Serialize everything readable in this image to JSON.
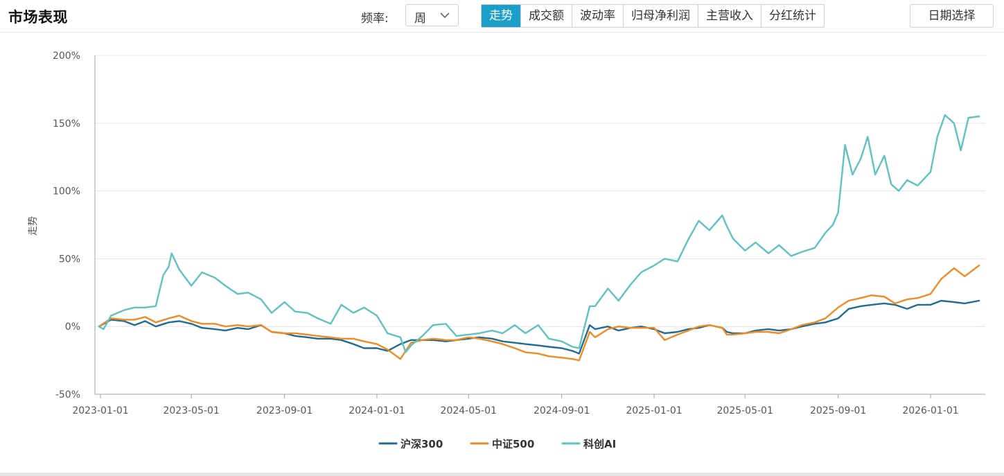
{
  "header": {
    "title": "市场表现",
    "frequency_label": "频率:",
    "frequency_value": "周",
    "tabs": [
      {
        "label": "走势",
        "active": true
      },
      {
        "label": "成交额",
        "active": false
      },
      {
        "label": "波动率",
        "active": false
      },
      {
        "label": "归母净利润",
        "active": false
      },
      {
        "label": "主营收入",
        "active": false
      },
      {
        "label": "分红统计",
        "active": false
      }
    ],
    "date_button": "日期选择"
  },
  "colors": {
    "accent": "#1aa0c8",
    "hs300": "#1f6b94",
    "zz500": "#f08a22",
    "kcai": "#5fc1c1"
  },
  "icons": {
    "frequency_dropdown": "chevron-down-icon"
  },
  "chart_data": {
    "type": "line",
    "title": "",
    "xlabel": "",
    "ylabel": "走势",
    "ylim": [
      -50,
      200
    ],
    "yticks": [
      -50,
      0,
      50,
      100,
      150,
      200
    ],
    "ytick_labels": [
      "-50%",
      "0%",
      "50%",
      "100%",
      "150%",
      "200%"
    ],
    "xticks": [
      "2023-01-01",
      "2023-05-01",
      "2023-09-01",
      "2024-01-01",
      "2024-05-01",
      "2024-09-01",
      "2025-01-01",
      "2025-05-01",
      "2025-09-01",
      "2026-01-01"
    ],
    "xlim": [
      "2022-12-30",
      "2026-03-06"
    ],
    "grid": "horizontal",
    "legend": "bottom-center",
    "series": [
      {
        "name": "沪深300",
        "color": "#1f6b94",
        "x": [
          "2022-12-30",
          "2023-01-15",
          "2023-02-01",
          "2023-02-15",
          "2023-03-01",
          "2023-03-15",
          "2023-04-01",
          "2023-04-15",
          "2023-05-01",
          "2023-05-15",
          "2023-06-01",
          "2023-06-15",
          "2023-07-01",
          "2023-07-15",
          "2023-08-01",
          "2023-08-15",
          "2023-09-01",
          "2023-09-15",
          "2023-10-01",
          "2023-10-15",
          "2023-11-01",
          "2023-11-15",
          "2023-12-01",
          "2023-12-15",
          "2024-01-01",
          "2024-01-15",
          "2024-02-01",
          "2024-02-15",
          "2024-03-01",
          "2024-03-15",
          "2024-04-01",
          "2024-04-15",
          "2024-05-01",
          "2024-05-15",
          "2024-06-01",
          "2024-06-15",
          "2024-07-01",
          "2024-07-15",
          "2024-08-01",
          "2024-08-15",
          "2024-09-01",
          "2024-09-15",
          "2024-09-24",
          "2024-10-08",
          "2024-10-15",
          "2024-11-01",
          "2024-11-15",
          "2024-12-01",
          "2024-12-15",
          "2025-01-01",
          "2025-01-15",
          "2025-02-01",
          "2025-02-15",
          "2025-03-01",
          "2025-03-15",
          "2025-04-01",
          "2025-04-07",
          "2025-04-15",
          "2025-05-01",
          "2025-05-15",
          "2025-06-01",
          "2025-06-15",
          "2025-07-01",
          "2025-07-15",
          "2025-08-01",
          "2025-08-15",
          "2025-09-01",
          "2025-09-15",
          "2025-10-01",
          "2025-10-15",
          "2025-11-01",
          "2025-11-15",
          "2025-12-01",
          "2025-12-15",
          "2026-01-01",
          "2026-01-15",
          "2026-02-01",
          "2026-02-15",
          "2026-03-06"
        ],
        "values": [
          0,
          5,
          4,
          1,
          4,
          0,
          3,
          4,
          2,
          -1,
          -2,
          -3,
          -1,
          -2,
          1,
          -4,
          -5,
          -7,
          -8,
          -9,
          -9,
          -10,
          -13,
          -16,
          -16,
          -18,
          -13,
          -10,
          -10,
          -10,
          -11,
          -10,
          -9,
          -8,
          -9,
          -11,
          -12,
          -13,
          -14,
          -15,
          -16,
          -18,
          -20,
          1,
          -2,
          0,
          -3,
          -1,
          0,
          -2,
          -5,
          -4,
          -2,
          -1,
          1,
          -1,
          -4,
          -5,
          -5,
          -3,
          -2,
          -3,
          -2,
          0,
          2,
          3,
          6,
          13,
          15,
          16,
          17,
          16,
          13,
          16,
          16,
          19,
          18,
          17,
          19
        ]
      },
      {
        "name": "中证500",
        "color": "#f08a22",
        "x": [
          "2022-12-30",
          "2023-01-15",
          "2023-02-01",
          "2023-02-15",
          "2023-03-01",
          "2023-03-15",
          "2023-04-01",
          "2023-04-15",
          "2023-05-01",
          "2023-05-15",
          "2023-06-01",
          "2023-06-15",
          "2023-07-01",
          "2023-07-15",
          "2023-08-01",
          "2023-08-15",
          "2023-09-01",
          "2023-09-15",
          "2023-10-01",
          "2023-10-15",
          "2023-11-01",
          "2023-11-15",
          "2023-12-01",
          "2023-12-15",
          "2024-01-01",
          "2024-01-15",
          "2024-02-01",
          "2024-02-15",
          "2024-03-01",
          "2024-03-15",
          "2024-04-01",
          "2024-04-15",
          "2024-05-01",
          "2024-05-15",
          "2024-06-01",
          "2024-06-15",
          "2024-07-01",
          "2024-07-15",
          "2024-08-01",
          "2024-08-15",
          "2024-09-01",
          "2024-09-15",
          "2024-09-24",
          "2024-10-08",
          "2024-10-15",
          "2024-11-01",
          "2024-11-15",
          "2024-12-01",
          "2024-12-15",
          "2025-01-01",
          "2025-01-15",
          "2025-02-01",
          "2025-02-15",
          "2025-03-01",
          "2025-03-15",
          "2025-04-01",
          "2025-04-07",
          "2025-04-15",
          "2025-05-01",
          "2025-05-15",
          "2025-06-01",
          "2025-06-15",
          "2025-07-01",
          "2025-07-15",
          "2025-08-01",
          "2025-08-15",
          "2025-09-01",
          "2025-09-15",
          "2025-10-01",
          "2025-10-15",
          "2025-11-01",
          "2025-11-15",
          "2025-12-01",
          "2025-12-15",
          "2026-01-01",
          "2026-01-15",
          "2026-02-01",
          "2026-02-15",
          "2026-03-06"
        ],
        "values": [
          0,
          6,
          5,
          5,
          7,
          3,
          6,
          8,
          4,
          2,
          2,
          0,
          1,
          0,
          1,
          -4,
          -5,
          -5,
          -6,
          -7,
          -8,
          -9,
          -9,
          -11,
          -13,
          -17,
          -24,
          -12,
          -10,
          -9,
          -10,
          -10,
          -8,
          -9,
          -11,
          -13,
          -16,
          -19,
          -20,
          -22,
          -23,
          -24,
          -25,
          -4,
          -8,
          -2,
          0,
          -1,
          -1,
          -1,
          -10,
          -6,
          -3,
          0,
          1,
          -1,
          -6,
          -6,
          -5,
          -4,
          -4,
          -5,
          -2,
          1,
          3,
          6,
          14,
          19,
          21,
          23,
          22,
          17,
          20,
          21,
          24,
          35,
          43,
          37,
          45
        ]
      },
      {
        "name": "科创AI",
        "color": "#5fc1c1",
        "x": [
          "2022-12-30",
          "2023-01-05",
          "2023-01-15",
          "2023-02-01",
          "2023-02-15",
          "2023-03-01",
          "2023-03-15",
          "2023-03-25",
          "2023-04-01",
          "2023-04-05",
          "2023-04-15",
          "2023-05-01",
          "2023-05-15",
          "2023-06-01",
          "2023-06-15",
          "2023-07-01",
          "2023-07-15",
          "2023-08-01",
          "2023-08-15",
          "2023-09-01",
          "2023-09-15",
          "2023-10-01",
          "2023-10-15",
          "2023-11-01",
          "2023-11-15",
          "2023-12-01",
          "2023-12-15",
          "2024-01-01",
          "2024-01-15",
          "2024-02-01",
          "2024-02-08",
          "2024-02-15",
          "2024-03-01",
          "2024-03-15",
          "2024-04-01",
          "2024-04-15",
          "2024-05-01",
          "2024-05-15",
          "2024-06-01",
          "2024-06-15",
          "2024-07-01",
          "2024-07-15",
          "2024-08-01",
          "2024-08-15",
          "2024-09-01",
          "2024-09-15",
          "2024-09-24",
          "2024-10-08",
          "2024-10-15",
          "2024-11-01",
          "2024-11-15",
          "2024-12-01",
          "2024-12-15",
          "2025-01-01",
          "2025-01-15",
          "2025-02-01",
          "2025-02-15",
          "2025-03-01",
          "2025-03-15",
          "2025-04-01",
          "2025-04-07",
          "2025-04-15",
          "2025-05-01",
          "2025-05-15",
          "2025-06-01",
          "2025-06-15",
          "2025-07-01",
          "2025-07-15",
          "2025-08-01",
          "2025-08-15",
          "2025-08-25",
          "2025-09-01",
          "2025-09-10",
          "2025-09-20",
          "2025-10-01",
          "2025-10-10",
          "2025-10-20",
          "2025-11-01",
          "2025-11-10",
          "2025-11-20",
          "2025-12-01",
          "2025-12-15",
          "2026-01-01",
          "2026-01-10",
          "2026-01-20",
          "2026-02-01",
          "2026-02-10",
          "2026-02-20",
          "2026-03-06"
        ],
        "values": [
          0,
          -2,
          8,
          12,
          14,
          14,
          15,
          38,
          44,
          54,
          42,
          30,
          40,
          36,
          30,
          24,
          25,
          20,
          10,
          18,
          11,
          10,
          6,
          2,
          16,
          10,
          14,
          8,
          -5,
          -8,
          -19,
          -14,
          -7,
          1,
          2,
          -7,
          -6,
          -5,
          -3,
          -5,
          1,
          -5,
          1,
          -9,
          -11,
          -15,
          -16,
          15,
          15,
          28,
          19,
          31,
          40,
          45,
          50,
          48,
          64,
          78,
          71,
          82,
          74,
          65,
          56,
          62,
          54,
          60,
          52,
          55,
          58,
          69,
          75,
          84,
          134,
          112,
          124,
          140,
          112,
          126,
          105,
          100,
          108,
          104,
          114,
          140,
          156,
          150,
          130,
          154,
          155
        ]
      }
    ]
  }
}
